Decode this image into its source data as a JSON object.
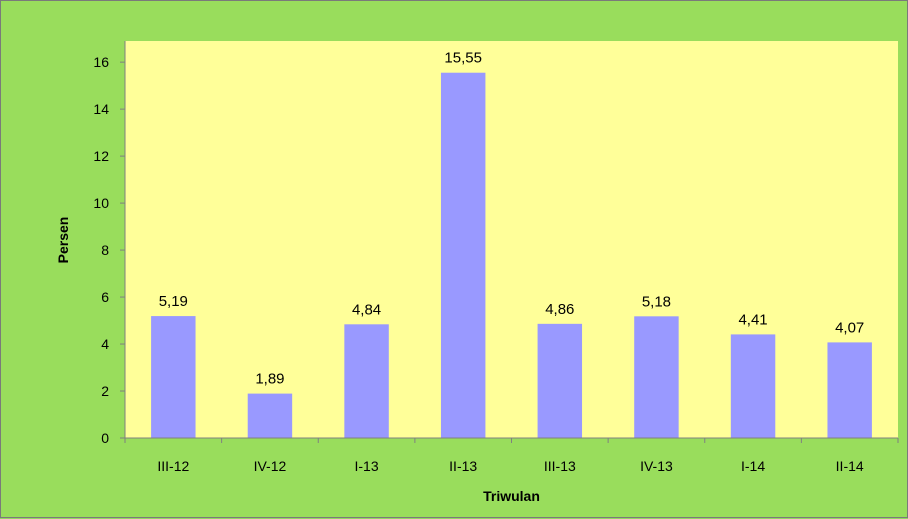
{
  "chart_data": {
    "type": "bar",
    "title": "",
    "xlabel": "Triwulan",
    "ylabel": "Persen",
    "categories": [
      "III-12",
      "IV-12",
      "I-13",
      "II-13",
      "III-13",
      "IV-13",
      "I-14",
      "II-14"
    ],
    "values": [
      5.19,
      1.89,
      4.84,
      15.55,
      4.86,
      5.18,
      4.41,
      4.07
    ],
    "value_labels": [
      "5,19",
      "1,89",
      "4,84",
      "15,55",
      "4,86",
      "5,18",
      "4,41",
      "4,07"
    ],
    "ylim": [
      0,
      16.9
    ],
    "yticks": [
      0,
      2,
      4,
      6,
      8,
      10,
      12,
      14,
      16
    ],
    "grid": false,
    "legend": "none",
    "colors": {
      "bar": "#9999ff",
      "plot_background": "#ffff99",
      "chart_background": "#99dd5c",
      "axis": "#808080"
    }
  }
}
